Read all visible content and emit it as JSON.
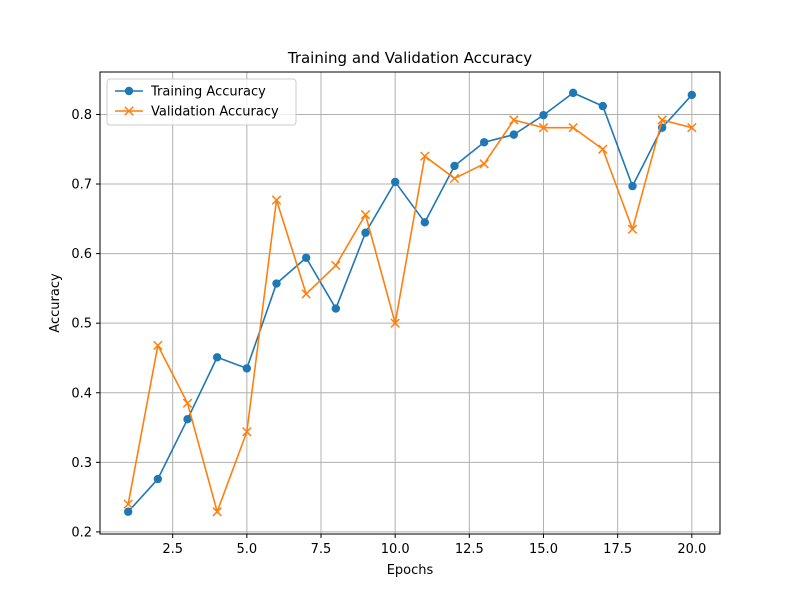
{
  "chart_data": {
    "type": "line",
    "title": "Training and Validation Accuracy",
    "xlabel": "Epochs",
    "ylabel": "Accuracy",
    "xlim": [
      0.05,
      20.95
    ],
    "ylim": [
      0.197,
      0.861
    ],
    "xticks": [
      2.5,
      5.0,
      7.5,
      10.0,
      12.5,
      15.0,
      17.5,
      20.0
    ],
    "xtick_labels": [
      "2.5",
      "5.0",
      "7.5",
      "10.0",
      "12.5",
      "15.0",
      "17.5",
      "20.0"
    ],
    "yticks": [
      0.2,
      0.3,
      0.4,
      0.5,
      0.6,
      0.7,
      0.8
    ],
    "ytick_labels": [
      "0.2",
      "0.3",
      "0.4",
      "0.5",
      "0.6",
      "0.7",
      "0.8"
    ],
    "grid": true,
    "legend_position": "top-left",
    "x": [
      1,
      2,
      3,
      4,
      5,
      6,
      7,
      8,
      9,
      10,
      11,
      12,
      13,
      14,
      15,
      16,
      17,
      18,
      19,
      20
    ],
    "series": [
      {
        "name": "Training Accuracy",
        "color": "#1f77b4",
        "marker": "circle",
        "values": [
          0.229,
          0.276,
          0.362,
          0.451,
          0.435,
          0.557,
          0.594,
          0.521,
          0.63,
          0.703,
          0.645,
          0.726,
          0.76,
          0.771,
          0.799,
          0.831,
          0.812,
          0.697,
          0.781,
          0.828
        ]
      },
      {
        "name": "Validation Accuracy",
        "color": "#ff7f0e",
        "marker": "x",
        "values": [
          0.24,
          0.468,
          0.385,
          0.229,
          0.344,
          0.677,
          0.542,
          0.583,
          0.656,
          0.5,
          0.74,
          0.708,
          0.729,
          0.792,
          0.781,
          0.781,
          0.75,
          0.635,
          0.792,
          0.781
        ]
      }
    ]
  }
}
